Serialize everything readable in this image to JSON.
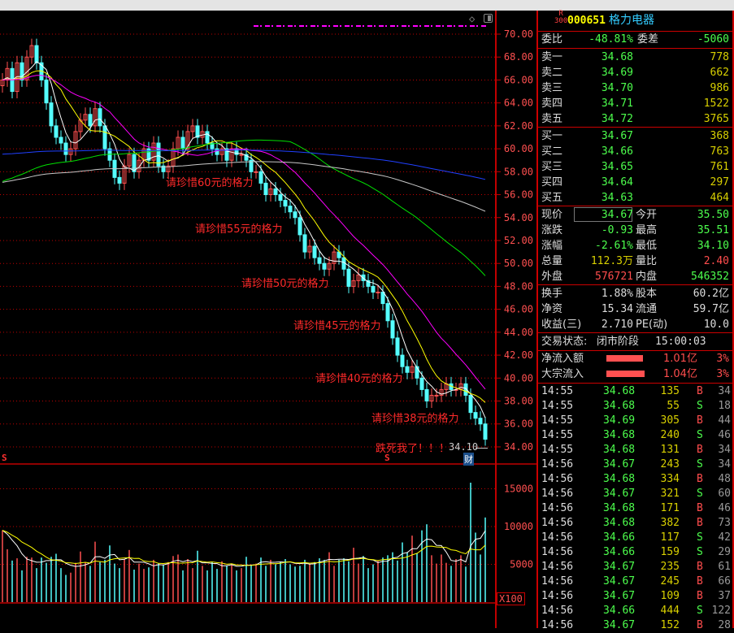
{
  "colors": {
    "up": "#ff5050",
    "down": "#55ffff",
    "grid": "#c00000",
    "axis": "#ff5050"
  },
  "header": {
    "badge_top": "R",
    "badge_bottom": "300",
    "code": "000651",
    "name": "格力电器"
  },
  "ratio": {
    "label": "委比",
    "value": "-48.81%",
    "label2": "委差",
    "value2": "-5060"
  },
  "asks": [
    {
      "label": "卖五",
      "price": "34.72",
      "vol": "3765"
    },
    {
      "label": "卖四",
      "price": "34.71",
      "vol": "1522"
    },
    {
      "label": "卖三",
      "price": "34.70",
      "vol": "986"
    },
    {
      "label": "卖二",
      "price": "34.69",
      "vol": "662"
    },
    {
      "label": "卖一",
      "price": "34.68",
      "vol": "778"
    }
  ],
  "bids": [
    {
      "label": "买一",
      "price": "34.67",
      "vol": "368"
    },
    {
      "label": "买二",
      "price": "34.66",
      "vol": "763"
    },
    {
      "label": "买三",
      "price": "34.65",
      "vol": "761"
    },
    {
      "label": "买四",
      "price": "34.64",
      "vol": "297"
    },
    {
      "label": "买五",
      "price": "34.63",
      "vol": "464"
    }
  ],
  "stats": [
    {
      "l1": "现价",
      "v1": "34.67",
      "c1": "g",
      "l2": "今开",
      "v2": "35.50",
      "c2": "g"
    },
    {
      "l1": "涨跌",
      "v1": "-0.93",
      "c1": "g",
      "l2": "最高",
      "v2": "35.51",
      "c2": "g"
    },
    {
      "l1": "涨幅",
      "v1": "-2.61%",
      "c1": "g",
      "l2": "最低",
      "v2": "34.10",
      "c2": "g"
    },
    {
      "l1": "总量",
      "v1": "112.3万",
      "c1": "y",
      "l2": "量比",
      "v2": "2.40",
      "c2": "r"
    },
    {
      "l1": "外盘",
      "v1": "576721",
      "c1": "r",
      "l2": "内盘",
      "v2": "546352",
      "c2": "g"
    }
  ],
  "fundamentals": [
    {
      "l1": "换手",
      "v1": "1.88%",
      "l2": "股本",
      "v2": "60.2亿"
    },
    {
      "l1": "净资",
      "v1": "15.34",
      "l2": "流通",
      "v2": "59.7亿"
    },
    {
      "l1": "收益(三)",
      "v1": "2.710",
      "l2": "PE(动)",
      "v2": "10.0"
    }
  ],
  "status": {
    "label": "交易状态:",
    "value": "闭市阶段",
    "time": "15:00:03"
  },
  "flows": [
    {
      "label": "净流入额",
      "value": "1.01亿",
      "pct": "3%"
    },
    {
      "label": "大宗流入",
      "value": "1.04亿",
      "pct": "3%"
    }
  ],
  "trades": [
    [
      "14:55",
      "34.68",
      "135",
      "B",
      "34"
    ],
    [
      "14:55",
      "34.68",
      "55",
      "S",
      "18"
    ],
    [
      "14:55",
      "34.69",
      "305",
      "B",
      "44"
    ],
    [
      "14:55",
      "34.68",
      "240",
      "S",
      "46"
    ],
    [
      "14:55",
      "34.68",
      "131",
      "B",
      "34"
    ],
    [
      "14:56",
      "34.67",
      "243",
      "S",
      "34"
    ],
    [
      "14:56",
      "34.68",
      "334",
      "B",
      "48"
    ],
    [
      "14:56",
      "34.67",
      "321",
      "S",
      "60"
    ],
    [
      "14:56",
      "34.68",
      "171",
      "B",
      "46"
    ],
    [
      "14:56",
      "34.68",
      "382",
      "B",
      "73"
    ],
    [
      "14:56",
      "34.66",
      "117",
      "S",
      "42"
    ],
    [
      "14:56",
      "34.66",
      "159",
      "S",
      "29"
    ],
    [
      "14:56",
      "34.67",
      "235",
      "B",
      "61"
    ],
    [
      "14:56",
      "34.67",
      "245",
      "B",
      "66"
    ],
    [
      "14:56",
      "34.67",
      "109",
      "B",
      "37"
    ],
    [
      "14:56",
      "34.66",
      "444",
      "S",
      "122"
    ],
    [
      "14:56",
      "34.67",
      "152",
      "B",
      "28"
    ]
  ],
  "annotations": [
    "请珍惜60元的格力",
    "请珍惜55元的格力",
    "请珍惜50元的格力",
    "请珍惜45元的格力",
    "请珍惜40元的格力",
    "请珍惜38元的格力",
    "跌死我了！！！"
  ],
  "markers": {
    "low_label": "34.10",
    "cai": "财",
    "s": "S",
    "x100": "X100"
  },
  "chart_data": [
    {
      "type": "candlestick",
      "ylim": [
        34,
        70
      ],
      "yticks": [
        70,
        68,
        66,
        64,
        62,
        60,
        58,
        56,
        54,
        52,
        50,
        48,
        46,
        44,
        42,
        40,
        38,
        36,
        34
      ],
      "close": [
        66,
        67,
        65,
        67.5,
        66,
        68,
        69,
        67.5,
        66,
        64,
        62,
        61,
        60.5,
        59.5,
        60,
        61.5,
        62.5,
        63,
        62,
        63.5,
        62,
        60,
        59,
        57.5,
        57,
        58.5,
        59.5,
        58,
        59,
        60,
        59,
        60.5,
        58.5,
        58,
        58.5,
        60,
        61,
        60,
        61.5,
        62,
        61,
        61.5,
        60.5,
        60,
        59.5,
        60,
        59,
        60,
        59.5,
        59.5,
        59,
        58,
        58,
        57,
        56,
        56.5,
        56,
        55.5,
        55,
        54.5,
        54,
        52.5,
        51,
        51.5,
        50.5,
        50,
        49.5,
        50,
        51,
        50.5,
        49.5,
        48,
        48.5,
        49,
        48.5,
        48,
        47.5,
        47.5,
        46.5,
        45,
        43.5,
        42,
        41,
        40.5,
        41,
        40,
        39,
        38,
        38.5,
        38.5,
        39,
        39.5,
        39,
        39,
        39.5,
        38.5,
        37,
        36.5,
        36,
        34.67
      ],
      "low": 34.1,
      "moving_averages": [
        5,
        10,
        20,
        60,
        120,
        250
      ]
    },
    {
      "type": "bar",
      "ylim": [
        0,
        16000
      ],
      "yticks": [
        15000,
        10000,
        5000
      ],
      "unit": "X100",
      "values": [
        9500,
        7000,
        5500,
        5800,
        4200,
        6000,
        5900,
        4500,
        5900,
        5200,
        6000,
        6400,
        4500,
        3600,
        3900,
        5200,
        6700,
        5300,
        4800,
        8000,
        5300,
        5600,
        7500,
        5100,
        4500,
        5700,
        6900,
        4300,
        5100,
        4400,
        4600,
        5600,
        5100,
        4900,
        5300,
        6100,
        6300,
        4200,
        5700,
        4500,
        6800,
        4800,
        4200,
        5300,
        4400,
        5400,
        4800,
        4900,
        4200,
        4500,
        6000,
        4900,
        5100,
        5900,
        4800,
        5600,
        5000,
        5300,
        5700,
        5000,
        4700,
        4800,
        5600,
        5000,
        5300,
        5800,
        5600,
        6600,
        4800,
        5600,
        5800,
        5400,
        7200,
        5100,
        6100,
        4500,
        5000,
        5500,
        5900,
        6200,
        6600,
        5500,
        7900,
        6600,
        8800,
        6500,
        9500,
        10300,
        6200,
        5100,
        6300,
        5200,
        4800,
        5700,
        6200,
        4700,
        15800,
        9200,
        6300,
        11200
      ]
    }
  ]
}
